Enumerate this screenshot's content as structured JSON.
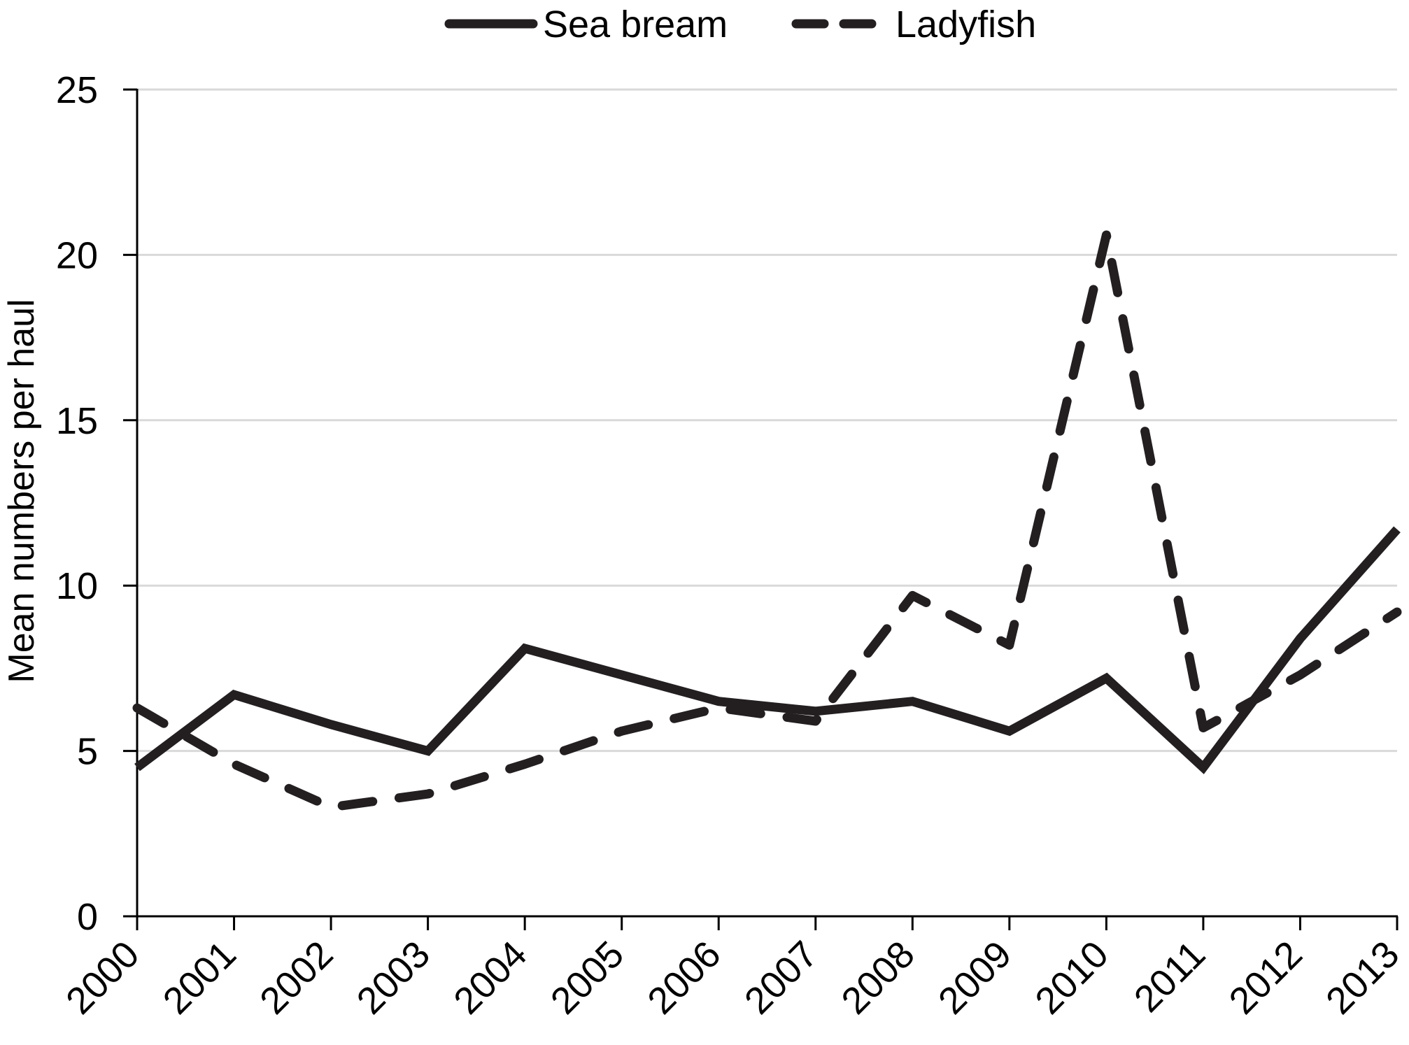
{
  "chart_data": {
    "type": "line",
    "title": "",
    "xlabel": "",
    "ylabel": "Mean numbers per haul",
    "ylim": [
      0,
      25
    ],
    "yticks": [
      0,
      5,
      10,
      15,
      20,
      25
    ],
    "grid": true,
    "legend_position": "top",
    "categories": [
      "2000",
      "2001",
      "2002",
      "2003",
      "2004",
      "2005",
      "2006",
      "2007",
      "2008",
      "2009",
      "2010",
      "2011",
      "2012",
      "2013"
    ],
    "series": [
      {
        "name": "Sea bream",
        "style": "solid",
        "color": "#231f20",
        "values": [
          4.5,
          6.7,
          5.8,
          5.0,
          8.1,
          7.3,
          6.5,
          6.2,
          6.5,
          5.6,
          7.2,
          4.5,
          8.4,
          11.7
        ]
      },
      {
        "name": "Ladyfish",
        "style": "dashed",
        "color": "#231f20",
        "values": [
          6.3,
          4.6,
          3.3,
          3.7,
          4.6,
          5.6,
          6.3,
          5.9,
          9.7,
          8.2,
          20.6,
          5.7,
          7.3,
          9.2
        ]
      }
    ]
  },
  "colors": {
    "line": "#231f20",
    "axis": "#000000",
    "grid": "#d9d9d9",
    "background": "#ffffff"
  }
}
